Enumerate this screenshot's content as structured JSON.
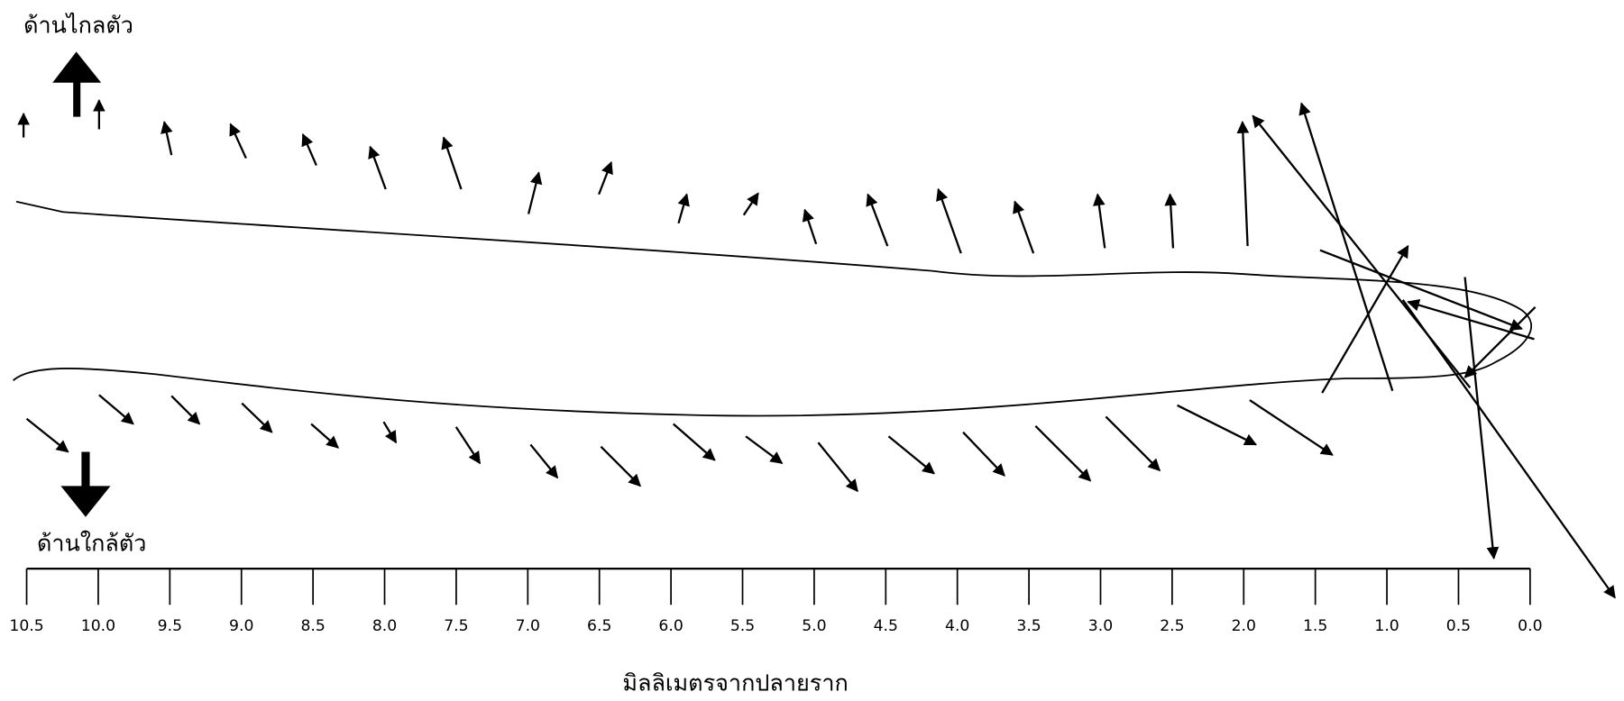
{
  "labels": {
    "far_side": "ด้านไกลตัว",
    "near_side": "ด้านใกล้ตัว",
    "axis_title": "มิลลิเมตรจากปลายราก"
  },
  "axis": {
    "ticks": [
      "10.5",
      "10.0",
      "9.5",
      "9.0",
      "8.5",
      "8.0",
      "7.5",
      "7.0",
      "6.5",
      "6.0",
      "5.5",
      "5.0",
      "4.5",
      "4.0",
      "3.5",
      "3.0",
      "2.5",
      "2.0",
      "1.5",
      "1.0",
      "0.5",
      "0.0"
    ]
  }
}
